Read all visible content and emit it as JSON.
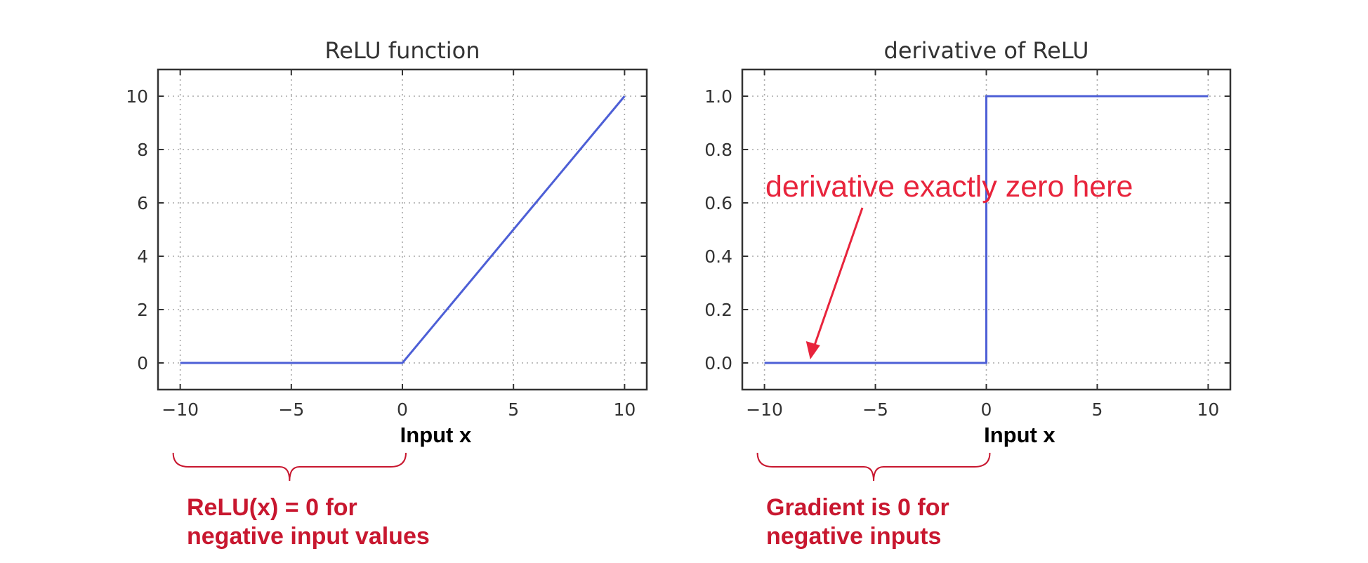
{
  "chart_data": [
    {
      "type": "line",
      "title": "ReLU function",
      "xlabel": "Input x",
      "ylabel": "",
      "xlim": [
        -11,
        11
      ],
      "ylim": [
        -1,
        11
      ],
      "x_ticks": [
        -10,
        -5,
        0,
        5,
        10
      ],
      "x_tick_labels": [
        "−10",
        "−5",
        "0",
        "5",
        "10"
      ],
      "y_ticks": [
        0,
        2,
        4,
        6,
        8,
        10
      ],
      "y_tick_labels": [
        "0",
        "2",
        "4",
        "6",
        "8",
        "10"
      ],
      "grid": true,
      "series": [
        {
          "color": "#4d5fd6",
          "x": [
            -10,
            0,
            10
          ],
          "y": [
            0,
            0,
            10
          ]
        }
      ]
    },
    {
      "type": "line",
      "title": "derivative of ReLU",
      "xlabel": "Input x",
      "ylabel": "",
      "xlim": [
        -11,
        11
      ],
      "ylim": [
        -0.1,
        1.1
      ],
      "x_ticks": [
        -10,
        -5,
        0,
        5,
        10
      ],
      "x_tick_labels": [
        "−10",
        "−5",
        "0",
        "5",
        "10"
      ],
      "y_ticks": [
        0,
        0.2,
        0.4,
        0.6,
        0.8,
        1.0
      ],
      "y_tick_labels": [
        "0.0",
        "0.2",
        "0.4",
        "0.6",
        "0.8",
        "1.0"
      ],
      "grid": true,
      "series": [
        {
          "color": "#4d5fd6",
          "x": [
            -10,
            0,
            0,
            10
          ],
          "y": [
            0,
            0,
            1,
            1
          ]
        }
      ],
      "annotations": [
        {
          "text": "derivative exactly zero here",
          "arrow_to": [
            -8,
            0
          ],
          "color": "#e8243c"
        }
      ]
    }
  ],
  "callouts": {
    "left": {
      "line1": "ReLU(x) = 0 for",
      "line2": "negative input values",
      "range": [
        -10,
        0
      ]
    },
    "right": {
      "line1": "Gradient is 0 for",
      "line2": "negative inputs",
      "range": [
        -10,
        0
      ]
    },
    "color": "#c8172f"
  }
}
